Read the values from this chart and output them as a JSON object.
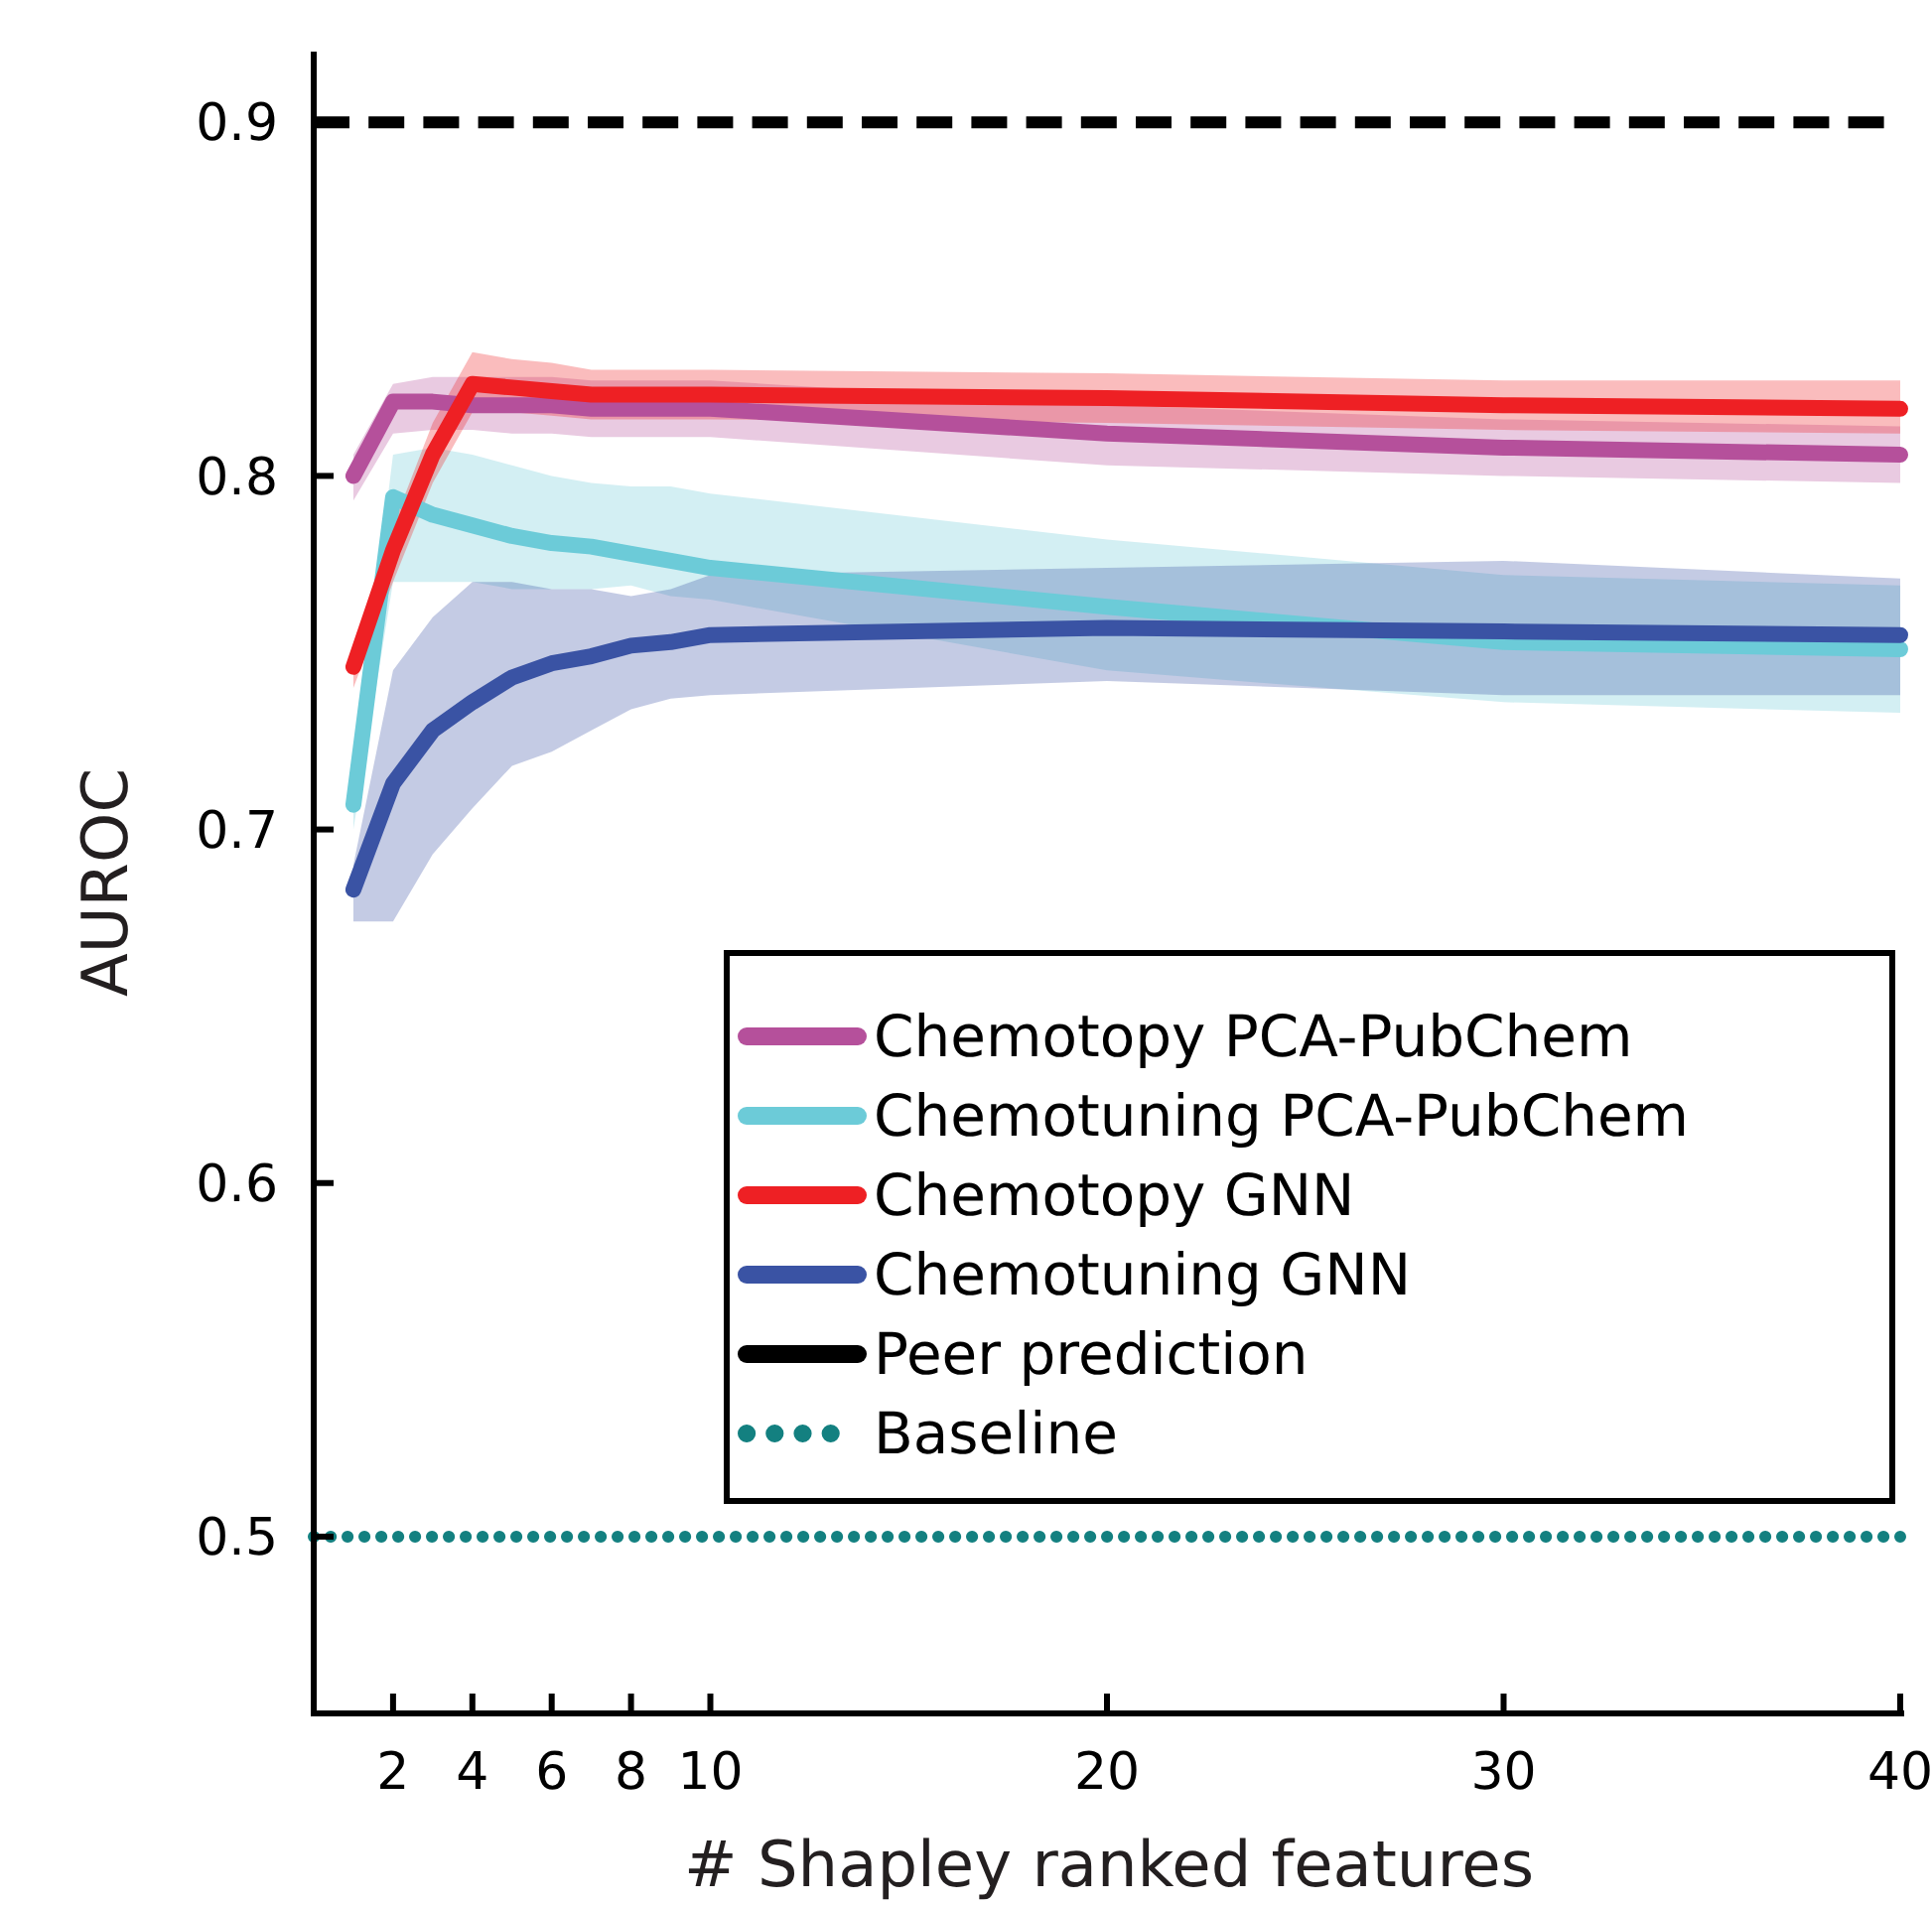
{
  "chart_data": {
    "type": "line",
    "xlabel": "# Shapley ranked features",
    "ylabel": "AUROC",
    "x": [
      1,
      2,
      3,
      4,
      5,
      6,
      7,
      8,
      9,
      10,
      20,
      30,
      40
    ],
    "xlim": [
      0,
      40
    ],
    "xticks": [
      2,
      4,
      6,
      8,
      10,
      20,
      30,
      40
    ],
    "ylim": [
      0.45,
      0.92
    ],
    "yticks": [
      0.5,
      0.6,
      0.7,
      0.8,
      0.9
    ],
    "grid": false,
    "legend": "right",
    "line_style": "solid",
    "marker": "none",
    "series": [
      {
        "name": "Chemotopy PCA-PubChem",
        "color": "#b5509b",
        "values": [
          0.8,
          0.821,
          0.821,
          0.82,
          0.82,
          0.82,
          0.819,
          0.819,
          0.819,
          0.819,
          0.812,
          0.808,
          0.806
        ],
        "lower": [
          0.793,
          0.812,
          0.813,
          0.813,
          0.812,
          0.812,
          0.811,
          0.811,
          0.811,
          0.811,
          0.803,
          0.8,
          0.798
        ],
        "upper": [
          0.806,
          0.826,
          0.828,
          0.828,
          0.828,
          0.828,
          0.827,
          0.827,
          0.827,
          0.827,
          0.82,
          0.816,
          0.814
        ]
      },
      {
        "name": "Chemotuning PCA-PubChem",
        "color": "#6ccbd8",
        "values": [
          0.707,
          0.794,
          0.789,
          0.786,
          0.783,
          0.781,
          0.78,
          0.778,
          0.776,
          0.774,
          0.763,
          0.753,
          0.751
        ],
        "lower": [
          0.7,
          0.77,
          0.77,
          0.77,
          0.768,
          0.768,
          0.768,
          0.769,
          0.766,
          0.765,
          0.745,
          0.736,
          0.733
        ],
        "upper": [
          0.715,
          0.806,
          0.808,
          0.806,
          0.803,
          0.8,
          0.798,
          0.797,
          0.797,
          0.795,
          0.782,
          0.772,
          0.769
        ]
      },
      {
        "name": "Chemotopy GNN",
        "color": "#ee2024",
        "values": [
          0.746,
          0.779,
          0.806,
          0.826,
          0.825,
          0.824,
          0.823,
          0.823,
          0.823,
          0.823,
          0.822,
          0.82,
          0.819
        ],
        "lower": [
          0.74,
          0.77,
          0.798,
          0.818,
          0.818,
          0.817,
          0.816,
          0.816,
          0.816,
          0.816,
          0.815,
          0.813,
          0.812
        ],
        "upper": [
          0.75,
          0.786,
          0.815,
          0.835,
          0.833,
          0.832,
          0.83,
          0.83,
          0.83,
          0.83,
          0.829,
          0.827,
          0.827
        ]
      },
      {
        "name": "Chemotuning GNN",
        "color": "#3a53a4",
        "values": [
          0.683,
          0.713,
          0.728,
          0.736,
          0.743,
          0.747,
          0.749,
          0.752,
          0.753,
          0.755,
          0.757,
          0.756,
          0.755
        ],
        "lower": [
          0.674,
          0.674,
          0.693,
          0.706,
          0.718,
          0.722,
          0.728,
          0.734,
          0.737,
          0.738,
          0.742,
          0.738,
          0.738
        ],
        "upper": [
          0.69,
          0.745,
          0.76,
          0.77,
          0.77,
          0.768,
          0.768,
          0.766,
          0.768,
          0.772,
          0.774,
          0.776,
          0.771
        ]
      }
    ],
    "ref_lines": [
      {
        "axis": "y",
        "value": 0.9,
        "label": "Peer prediction",
        "color": "#000000",
        "line_style": "dashed"
      },
      {
        "axis": "y",
        "value": 0.5,
        "label": "Baseline",
        "color": "#138080",
        "line_style": "dotted"
      }
    ]
  }
}
